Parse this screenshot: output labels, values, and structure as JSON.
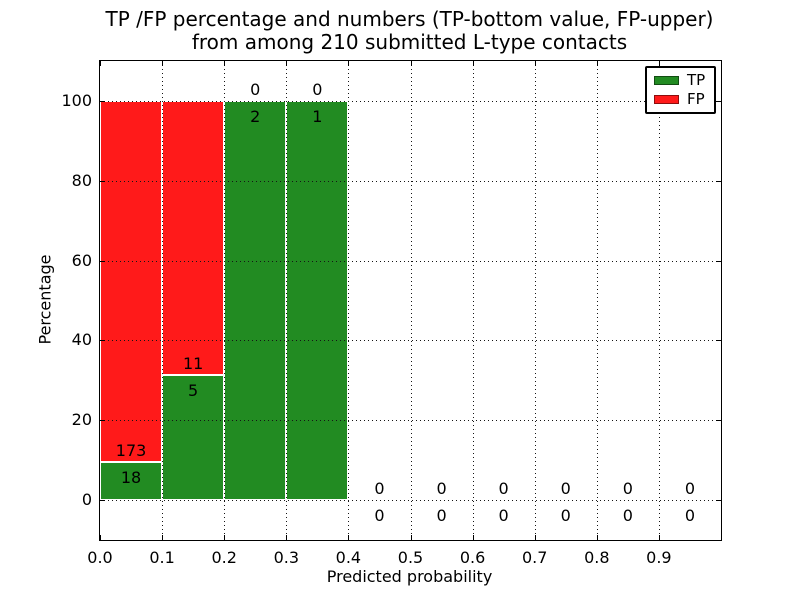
{
  "figure": {
    "title_line1": "TP /FP percentage and numbers (TP-bottom value, FP-upper)",
    "title_line2": "from among 210 submitted L-type contacts"
  },
  "chart_data": {
    "type": "bar",
    "stacked": true,
    "title": "TP /FP percentage and numbers (TP-bottom value, FP-upper)\nfrom among 210 submitted L-type contacts",
    "xlabel": "Predicted probability",
    "ylabel": "Percentage",
    "xlim": [
      0.0,
      1.0
    ],
    "ylim": [
      -10,
      110
    ],
    "grid": "dotted",
    "legend_position": "upper right",
    "x_tick_values": [
      0.0,
      0.1,
      0.2,
      0.3,
      0.4,
      0.5,
      0.6,
      0.7,
      0.8,
      0.9
    ],
    "x_tick_labels": [
      "0.0",
      "0.1",
      "0.2",
      "0.3",
      "0.4",
      "0.5",
      "0.6",
      "0.7",
      "0.8",
      "0.9"
    ],
    "y_tick_values": [
      0,
      20,
      40,
      60,
      80,
      100
    ],
    "y_tick_labels": [
      "0",
      "20",
      "40",
      "60",
      "80",
      "100"
    ],
    "total_contacts": 210,
    "series": [
      {
        "name": "TP",
        "color": "#228b22"
      },
      {
        "name": "FP",
        "color": "#ff1a1a"
      }
    ],
    "bins": [
      {
        "x0": 0.0,
        "x1": 0.1,
        "tp": 18,
        "fp": 173,
        "tp_pct": 9.42,
        "fp_pct": 90.58
      },
      {
        "x0": 0.1,
        "x1": 0.2,
        "tp": 5,
        "fp": 11,
        "tp_pct": 31.25,
        "fp_pct": 68.75
      },
      {
        "x0": 0.2,
        "x1": 0.3,
        "tp": 2,
        "fp": 0,
        "tp_pct": 100,
        "fp_pct": 0
      },
      {
        "x0": 0.3,
        "x1": 0.4,
        "tp": 1,
        "fp": 0,
        "tp_pct": 100,
        "fp_pct": 0
      },
      {
        "x0": 0.4,
        "x1": 0.5,
        "tp": 0,
        "fp": 0,
        "tp_pct": 0,
        "fp_pct": 0
      },
      {
        "x0": 0.5,
        "x1": 0.6,
        "tp": 0,
        "fp": 0,
        "tp_pct": 0,
        "fp_pct": 0
      },
      {
        "x0": 0.6,
        "x1": 0.7,
        "tp": 0,
        "fp": 0,
        "tp_pct": 0,
        "fp_pct": 0
      },
      {
        "x0": 0.7,
        "x1": 0.8,
        "tp": 0,
        "fp": 0,
        "tp_pct": 0,
        "fp_pct": 0
      },
      {
        "x0": 0.8,
        "x1": 0.9,
        "tp": 0,
        "fp": 0,
        "tp_pct": 0,
        "fp_pct": 0
      },
      {
        "x0": 0.9,
        "x1": 1.0,
        "tp": 0,
        "fp": 0,
        "tp_pct": 0,
        "fp_pct": 0
      }
    ]
  }
}
